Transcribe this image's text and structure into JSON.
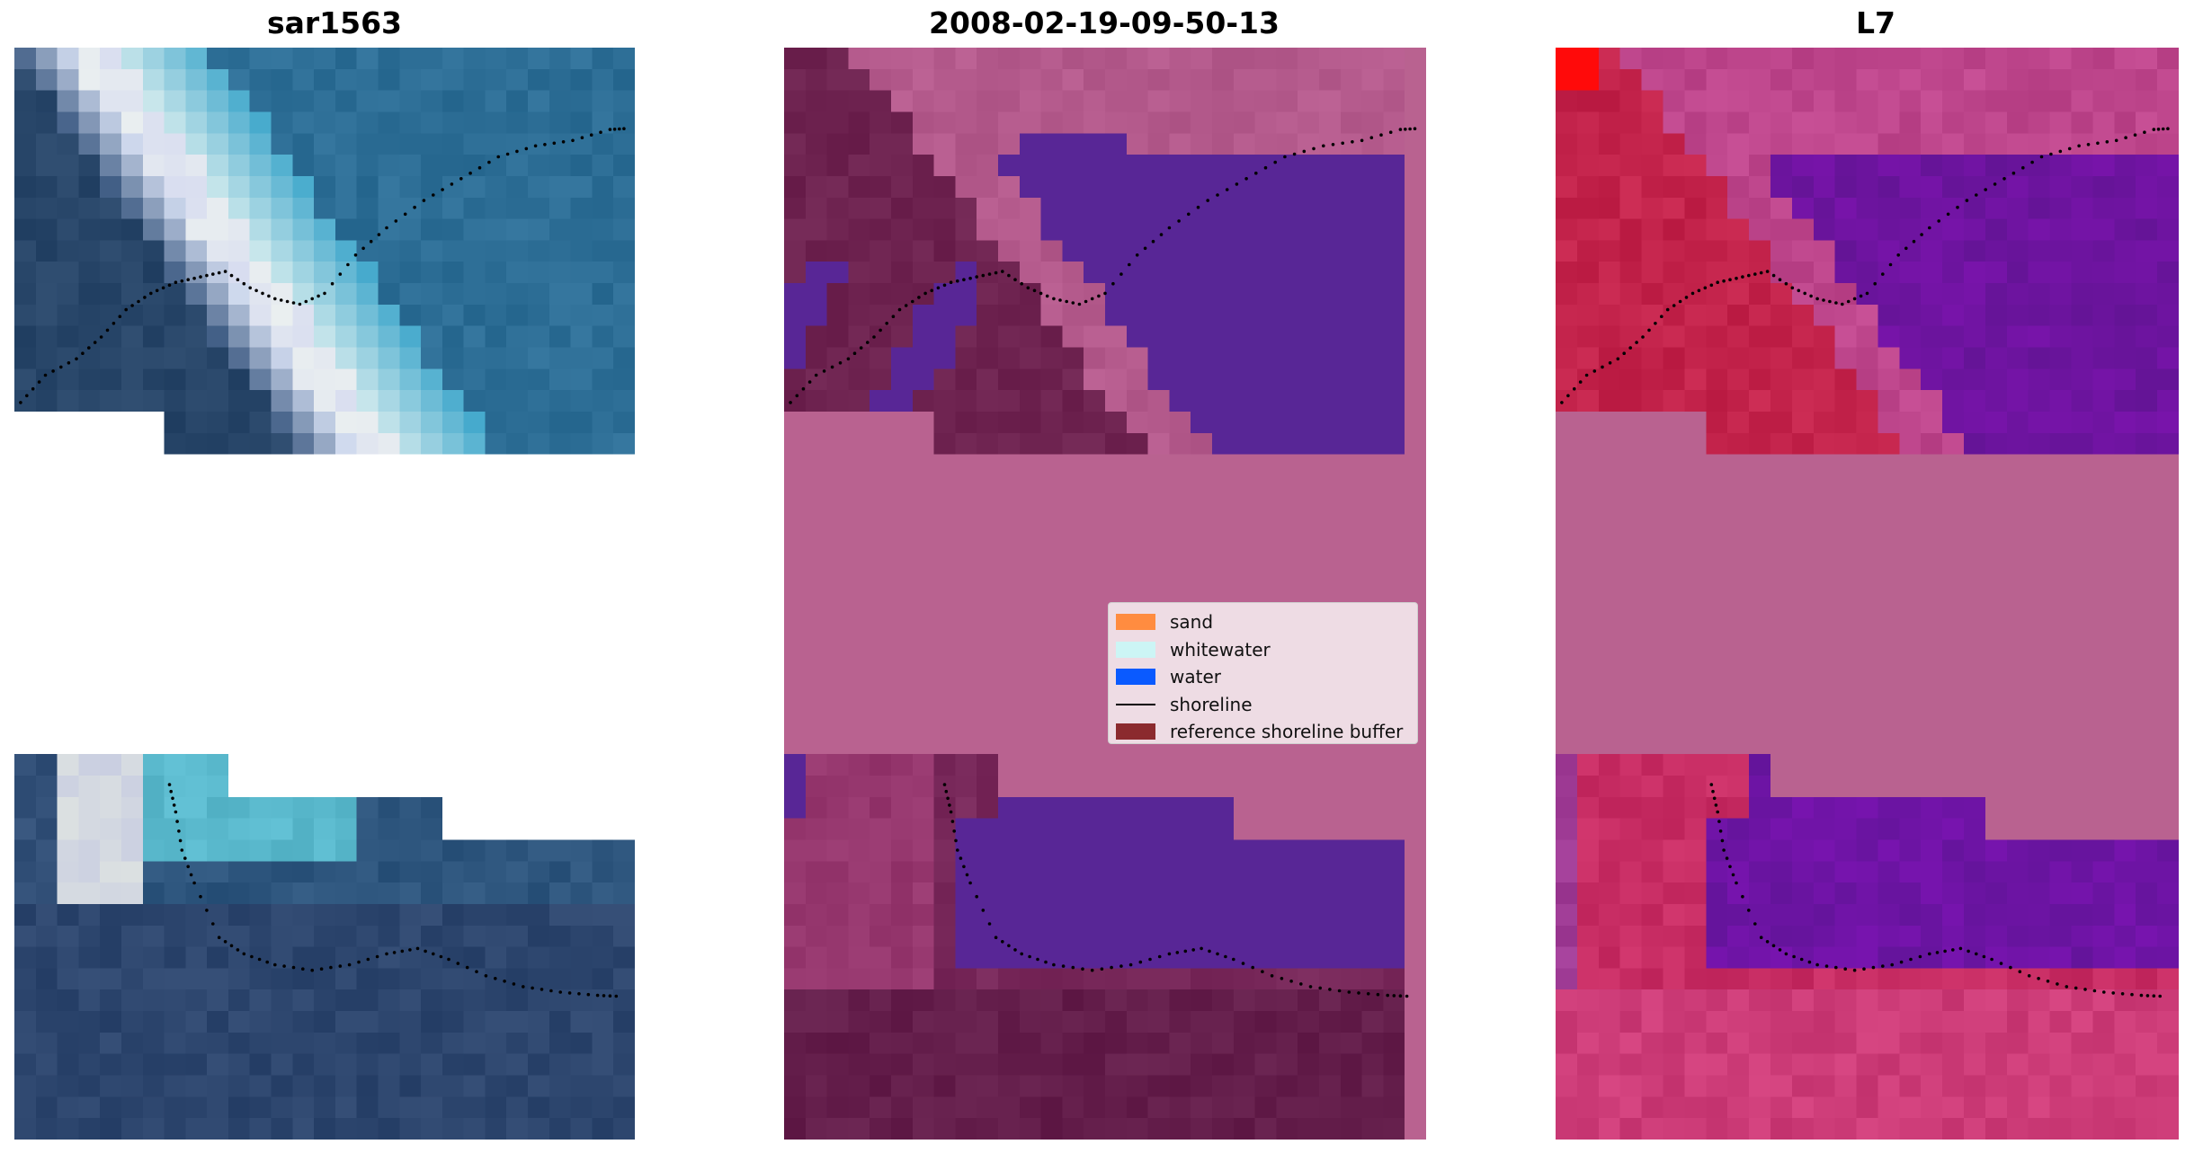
{
  "panels": [
    {
      "title": "sar1563",
      "scheme": "rgb"
    },
    {
      "title": "2008-02-19-09-50-13",
      "scheme": "classified"
    },
    {
      "title": "L7",
      "scheme": "index"
    }
  ],
  "legend": {
    "items": [
      {
        "label": "sand",
        "color": "#ff8c40",
        "kind": "patch"
      },
      {
        "label": "whitewater",
        "color": "#ccf5f5",
        "kind": "patch"
      },
      {
        "label": "water",
        "color": "#0a5aff",
        "kind": "patch"
      },
      {
        "label": "shoreline",
        "color": "#000000",
        "kind": "line"
      },
      {
        "label": "reference shoreline buffer",
        "color": "#8b2a2e",
        "kind": "patch"
      }
    ]
  },
  "colors": {
    "nodata_pink": "#b96290",
    "background": "#ffffff"
  }
}
